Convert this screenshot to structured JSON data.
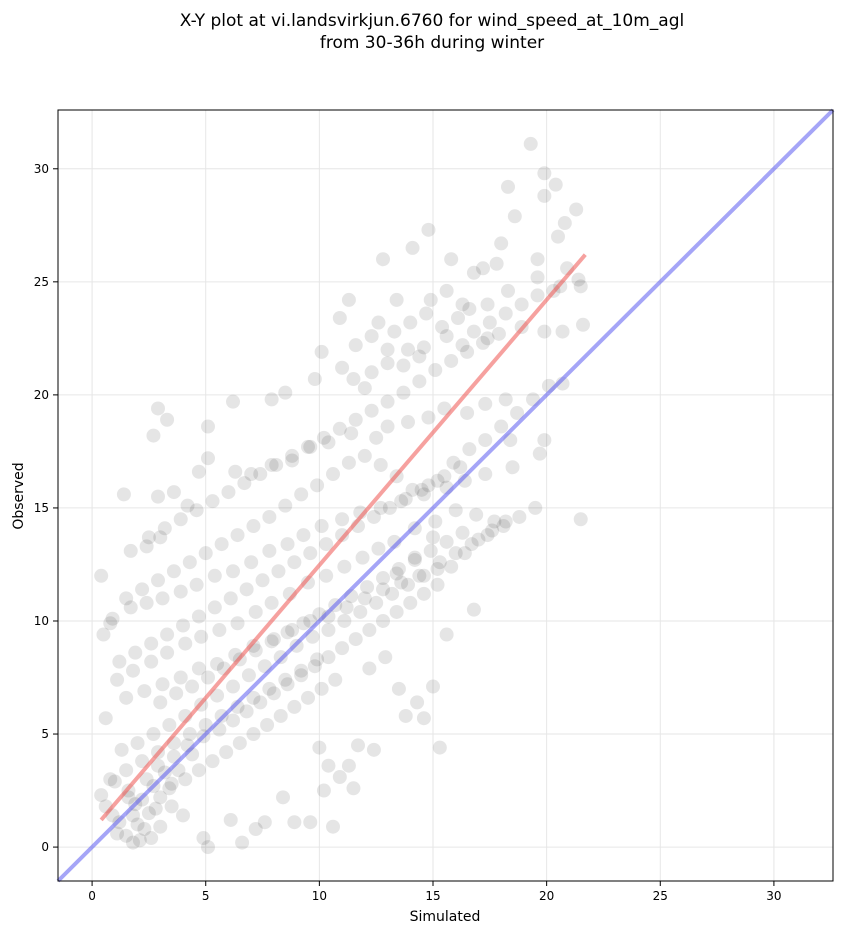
{
  "chart_data": {
    "type": "scatter",
    "title_lines": [
      "X-Y plot at vi.landsvirkjun.6760 for wind_speed_at_10m_agl",
      "from 30-36h during winter"
    ],
    "xlabel": "Simulated",
    "ylabel": "Observed",
    "xlim": [
      -1.5,
      32.6
    ],
    "ylim": [
      -1.5,
      32.6
    ],
    "xticks": [
      0,
      5,
      10,
      15,
      20,
      25,
      30
    ],
    "yticks": [
      0,
      5,
      10,
      15,
      20,
      25,
      30
    ],
    "grid": true,
    "colors": {
      "points": "#000000",
      "regression_line": "#ef5350",
      "identity_line": "#5b5bf0"
    },
    "identity_line": {
      "x": [
        -1.5,
        32.6
      ],
      "y": [
        -1.5,
        32.6
      ]
    },
    "regression_line": {
      "x": [
        0.4,
        21.7
      ],
      "y": [
        1.2,
        26.2
      ]
    },
    "points": [
      [
        19.3,
        31.1
      ],
      [
        19.9,
        29.8
      ],
      [
        20.4,
        29.3
      ],
      [
        19.9,
        28.8
      ],
      [
        18.3,
        29.2
      ],
      [
        21.3,
        28.2
      ],
      [
        20.8,
        27.6
      ],
      [
        18.6,
        27.9
      ],
      [
        20.5,
        27.0
      ],
      [
        18.0,
        26.7
      ],
      [
        15.8,
        26.0
      ],
      [
        17.8,
        25.8
      ],
      [
        17.2,
        25.6
      ],
      [
        16.8,
        25.4
      ],
      [
        19.6,
        25.2
      ],
      [
        20.6,
        24.8
      ],
      [
        21.5,
        24.8
      ],
      [
        18.3,
        24.6
      ],
      [
        17.4,
        24.0
      ],
      [
        16.6,
        23.8
      ],
      [
        14.8,
        27.3
      ],
      [
        14.1,
        26.5
      ],
      [
        12.8,
        26.0
      ],
      [
        11.3,
        24.2
      ],
      [
        13.4,
        24.2
      ],
      [
        12.6,
        23.2
      ],
      [
        10.9,
        23.4
      ],
      [
        21.6,
        23.1
      ],
      [
        20.7,
        22.8
      ],
      [
        19.9,
        22.8
      ],
      [
        18.9,
        23.0
      ],
      [
        17.4,
        22.5
      ],
      [
        16.3,
        22.2
      ],
      [
        15.6,
        22.6
      ],
      [
        14.6,
        22.1
      ],
      [
        13.9,
        22.0
      ],
      [
        13.0,
        21.4
      ],
      [
        12.3,
        21.0
      ],
      [
        11.5,
        20.7
      ],
      [
        10.1,
        21.9
      ],
      [
        11.0,
        21.2
      ],
      [
        12.0,
        20.3
      ],
      [
        9.8,
        20.7
      ],
      [
        8.5,
        20.1
      ],
      [
        7.9,
        19.8
      ],
      [
        6.2,
        19.7
      ],
      [
        2.9,
        19.4
      ],
      [
        18.2,
        19.8
      ],
      [
        17.3,
        19.6
      ],
      [
        16.5,
        19.2
      ],
      [
        15.5,
        19.4
      ],
      [
        14.8,
        19.0
      ],
      [
        13.9,
        18.8
      ],
      [
        13.0,
        18.6
      ],
      [
        12.5,
        18.1
      ],
      [
        11.4,
        18.3
      ],
      [
        10.4,
        17.9
      ],
      [
        9.6,
        17.7
      ],
      [
        8.8,
        17.1
      ],
      [
        7.9,
        16.9
      ],
      [
        7.0,
        16.5
      ],
      [
        6.3,
        16.6
      ],
      [
        5.1,
        17.2
      ],
      [
        5.1,
        18.6
      ],
      [
        2.7,
        18.2
      ],
      [
        3.3,
        18.9
      ],
      [
        4.7,
        16.6
      ],
      [
        19.9,
        18.0
      ],
      [
        19.7,
        17.4
      ],
      [
        18.5,
        16.8
      ],
      [
        17.3,
        16.5
      ],
      [
        16.4,
        16.2
      ],
      [
        15.6,
        15.9
      ],
      [
        14.6,
        15.6
      ],
      [
        13.6,
        15.3
      ],
      [
        12.7,
        15.0
      ],
      [
        11.8,
        14.8
      ],
      [
        11.0,
        14.5
      ],
      [
        10.1,
        14.2
      ],
      [
        9.3,
        13.8
      ],
      [
        8.6,
        13.4
      ],
      [
        7.8,
        13.1
      ],
      [
        7.0,
        12.6
      ],
      [
        6.2,
        12.2
      ],
      [
        5.4,
        12.0
      ],
      [
        4.6,
        11.6
      ],
      [
        3.9,
        11.3
      ],
      [
        3.1,
        11.0
      ],
      [
        2.4,
        10.8
      ],
      [
        1.7,
        10.6
      ],
      [
        0.9,
        10.1
      ],
      [
        0.4,
        12.0
      ],
      [
        0.5,
        9.4
      ],
      [
        1.4,
        15.6
      ],
      [
        2.9,
        15.5
      ],
      [
        3.6,
        15.7
      ],
      [
        4.2,
        15.1
      ],
      [
        3.0,
        13.7
      ],
      [
        2.4,
        13.3
      ],
      [
        1.7,
        13.1
      ],
      [
        21.5,
        14.5
      ],
      [
        18.4,
        18.0
      ],
      [
        17.7,
        14.4
      ],
      [
        16.9,
        14.7
      ],
      [
        16.0,
        14.9
      ],
      [
        15.1,
        14.4
      ],
      [
        14.2,
        14.1
      ],
      [
        13.3,
        13.5
      ],
      [
        12.6,
        13.2
      ],
      [
        11.9,
        12.8
      ],
      [
        11.1,
        12.4
      ],
      [
        10.3,
        12.0
      ],
      [
        9.5,
        11.7
      ],
      [
        8.7,
        11.2
      ],
      [
        7.9,
        10.8
      ],
      [
        7.2,
        10.4
      ],
      [
        6.4,
        9.9
      ],
      [
        5.6,
        9.6
      ],
      [
        4.8,
        9.3
      ],
      [
        4.1,
        9.0
      ],
      [
        3.3,
        8.6
      ],
      [
        2.6,
        8.2
      ],
      [
        1.8,
        7.8
      ],
      [
        1.1,
        7.4
      ],
      [
        0.6,
        5.7
      ],
      [
        1.5,
        6.6
      ],
      [
        2.3,
        6.9
      ],
      [
        3.1,
        7.2
      ],
      [
        3.9,
        7.5
      ],
      [
        4.7,
        7.9
      ],
      [
        5.5,
        8.1
      ],
      [
        6.3,
        8.5
      ],
      [
        7.1,
        8.9
      ],
      [
        8.0,
        9.2
      ],
      [
        8.8,
        9.6
      ],
      [
        9.6,
        10.0
      ],
      [
        10.4,
        10.2
      ],
      [
        11.2,
        10.6
      ],
      [
        12.0,
        11.0
      ],
      [
        12.8,
        11.4
      ],
      [
        13.6,
        11.7
      ],
      [
        14.4,
        12.0
      ],
      [
        15.2,
        12.3
      ],
      [
        15.0,
        13.7
      ],
      [
        14.2,
        12.8
      ],
      [
        13.4,
        12.1
      ],
      [
        16.8,
        10.5
      ],
      [
        15.6,
        9.4
      ],
      [
        15.0,
        7.1
      ],
      [
        14.6,
        5.7
      ],
      [
        15.3,
        4.4
      ],
      [
        14.3,
        6.4
      ],
      [
        13.8,
        5.8
      ],
      [
        13.5,
        7.0
      ],
      [
        12.9,
        8.4
      ],
      [
        12.2,
        7.9
      ],
      [
        11.7,
        4.5
      ],
      [
        12.4,
        4.3
      ],
      [
        11.3,
        3.6
      ],
      [
        10.4,
        3.6
      ],
      [
        10.0,
        4.4
      ],
      [
        10.9,
        3.1
      ],
      [
        11.5,
        2.6
      ],
      [
        10.2,
        2.5
      ],
      [
        10.6,
        0.9
      ],
      [
        9.6,
        1.1
      ],
      [
        8.9,
        1.1
      ],
      [
        8.4,
        2.2
      ],
      [
        7.6,
        1.1
      ],
      [
        7.2,
        0.8
      ],
      [
        6.1,
        1.2
      ],
      [
        6.6,
        0.2
      ],
      [
        5.1,
        0.0
      ],
      [
        4.9,
        0.4
      ],
      [
        4.0,
        1.4
      ],
      [
        3.5,
        1.8
      ],
      [
        3.0,
        0.9
      ],
      [
        2.6,
        0.4
      ],
      [
        2.1,
        0.3
      ],
      [
        1.8,
        0.2
      ],
      [
        1.5,
        0.5
      ],
      [
        1.2,
        1.1
      ],
      [
        0.9,
        1.4
      ],
      [
        0.6,
        1.8
      ],
      [
        0.4,
        2.3
      ],
      [
        1.0,
        2.9
      ],
      [
        1.6,
        2.5
      ],
      [
        2.2,
        2.1
      ],
      [
        2.8,
        1.7
      ],
      [
        3.4,
        2.6
      ],
      [
        4.1,
        3.0
      ],
      [
        4.7,
        3.4
      ],
      [
        5.3,
        3.8
      ],
      [
        5.9,
        4.2
      ],
      [
        6.5,
        4.6
      ],
      [
        7.1,
        5.0
      ],
      [
        7.7,
        5.4
      ],
      [
        8.3,
        5.8
      ],
      [
        8.9,
        6.2
      ],
      [
        9.5,
        6.6
      ],
      [
        10.1,
        7.0
      ],
      [
        10.7,
        7.4
      ],
      [
        9.9,
        8.3
      ],
      [
        9.2,
        7.8
      ],
      [
        8.5,
        7.4
      ],
      [
        7.8,
        7.0
      ],
      [
        7.1,
        6.6
      ],
      [
        6.4,
        6.2
      ],
      [
        5.7,
        5.8
      ],
      [
        5.0,
        5.4
      ],
      [
        4.3,
        5.0
      ],
      [
        3.6,
        4.6
      ],
      [
        2.9,
        4.2
      ],
      [
        2.2,
        3.8
      ],
      [
        1.5,
        3.4
      ],
      [
        0.8,
        3.0
      ],
      [
        1.3,
        4.3
      ],
      [
        2.0,
        4.6
      ],
      [
        2.7,
        5.0
      ],
      [
        3.4,
        5.4
      ],
      [
        4.1,
        5.8
      ],
      [
        4.8,
        6.3
      ],
      [
        5.5,
        6.7
      ],
      [
        6.2,
        7.1
      ],
      [
        6.9,
        7.6
      ],
      [
        7.6,
        8.0
      ],
      [
        8.3,
        8.4
      ],
      [
        9.0,
        8.9
      ],
      [
        9.7,
        9.3
      ],
      [
        10.4,
        9.6
      ],
      [
        11.1,
        10.0
      ],
      [
        11.8,
        10.4
      ],
      [
        12.5,
        10.8
      ],
      [
        13.2,
        11.2
      ],
      [
        13.9,
        11.6
      ],
      [
        14.6,
        12.0
      ],
      [
        15.3,
        12.6
      ],
      [
        16.0,
        13.0
      ],
      [
        16.7,
        13.4
      ],
      [
        17.4,
        13.8
      ],
      [
        18.1,
        14.2
      ],
      [
        18.8,
        14.6
      ],
      [
        19.5,
        15.0
      ],
      [
        16.2,
        16.8
      ],
      [
        15.5,
        16.4
      ],
      [
        14.8,
        16.0
      ],
      [
        14.1,
        15.8
      ],
      [
        13.4,
        16.4
      ],
      [
        12.7,
        16.9
      ],
      [
        12.0,
        17.3
      ],
      [
        11.3,
        17.0
      ],
      [
        10.6,
        16.5
      ],
      [
        9.9,
        16.0
      ],
      [
        9.2,
        15.6
      ],
      [
        8.5,
        15.1
      ],
      [
        7.8,
        14.6
      ],
      [
        7.1,
        14.2
      ],
      [
        6.4,
        13.8
      ],
      [
        5.7,
        13.4
      ],
      [
        5.0,
        13.0
      ],
      [
        4.3,
        12.6
      ],
      [
        3.6,
        12.2
      ],
      [
        2.9,
        11.8
      ],
      [
        2.2,
        11.4
      ],
      [
        1.5,
        11.0
      ],
      [
        0.8,
        9.9
      ],
      [
        1.2,
        8.2
      ],
      [
        1.9,
        8.6
      ],
      [
        2.6,
        9.0
      ],
      [
        3.3,
        9.4
      ],
      [
        4.0,
        9.8
      ],
      [
        4.7,
        10.2
      ],
      [
        5.4,
        10.6
      ],
      [
        6.1,
        11.0
      ],
      [
        6.8,
        11.4
      ],
      [
        7.5,
        11.8
      ],
      [
        8.2,
        12.2
      ],
      [
        8.9,
        12.6
      ],
      [
        9.6,
        13.0
      ],
      [
        10.3,
        13.4
      ],
      [
        11.0,
        13.8
      ],
      [
        11.7,
        14.2
      ],
      [
        12.4,
        14.6
      ],
      [
        13.1,
        15.0
      ],
      [
        13.8,
        15.4
      ],
      [
        14.5,
        15.8
      ],
      [
        15.2,
        16.2
      ],
      [
        15.9,
        17.0
      ],
      [
        16.6,
        17.6
      ],
      [
        17.3,
        18.0
      ],
      [
        18.0,
        18.6
      ],
      [
        18.7,
        19.2
      ],
      [
        19.4,
        19.8
      ],
      [
        20.1,
        20.4
      ],
      [
        20.7,
        20.5
      ],
      [
        14.4,
        20.6
      ],
      [
        13.7,
        20.1
      ],
      [
        13.0,
        19.7
      ],
      [
        12.3,
        19.3
      ],
      [
        11.6,
        18.9
      ],
      [
        10.9,
        18.5
      ],
      [
        10.2,
        18.1
      ],
      [
        9.5,
        17.7
      ],
      [
        8.8,
        17.3
      ],
      [
        8.1,
        16.9
      ],
      [
        7.4,
        16.5
      ],
      [
        6.7,
        16.1
      ],
      [
        6.0,
        15.7
      ],
      [
        5.3,
        15.3
      ],
      [
        4.6,
        14.9
      ],
      [
        3.9,
        14.5
      ],
      [
        3.2,
        14.1
      ],
      [
        2.5,
        13.7
      ],
      [
        17.9,
        22.7
      ],
      [
        17.2,
        22.3
      ],
      [
        16.5,
        21.9
      ],
      [
        15.8,
        21.5
      ],
      [
        15.1,
        21.1
      ],
      [
        14.4,
        21.7
      ],
      [
        13.7,
        21.3
      ],
      [
        13.0,
        22.0
      ],
      [
        12.3,
        22.6
      ],
      [
        11.6,
        22.2
      ],
      [
        19.6,
        24.4
      ],
      [
        18.9,
        24.0
      ],
      [
        18.2,
        23.6
      ],
      [
        17.5,
        23.2
      ],
      [
        16.8,
        22.8
      ],
      [
        16.1,
        23.4
      ],
      [
        15.4,
        23.0
      ],
      [
        14.7,
        23.6
      ],
      [
        14.0,
        23.2
      ],
      [
        13.3,
        22.8
      ],
      [
        20.3,
        24.6
      ],
      [
        19.6,
        26.0
      ],
      [
        20.9,
        25.6
      ],
      [
        21.4,
        25.1
      ],
      [
        16.3,
        24.0
      ],
      [
        15.6,
        24.6
      ],
      [
        14.9,
        24.2
      ],
      [
        2.0,
        1.0
      ],
      [
        2.5,
        1.5
      ],
      [
        3.0,
        2.2
      ],
      [
        3.5,
        2.8
      ],
      [
        2.3,
        0.8
      ],
      [
        1.9,
        1.9
      ],
      [
        2.7,
        2.7
      ],
      [
        3.2,
        3.3
      ],
      [
        1.6,
        2.2
      ],
      [
        2.4,
        3.0
      ],
      [
        3.8,
        3.4
      ],
      [
        4.4,
        4.1
      ],
      [
        1.1,
        0.6
      ],
      [
        1.8,
        1.4
      ],
      [
        2.9,
        3.6
      ],
      [
        3.6,
        4.0
      ],
      [
        4.2,
        4.5
      ],
      [
        4.9,
        4.9
      ],
      [
        5.6,
        5.2
      ],
      [
        6.2,
        5.6
      ],
      [
        6.8,
        6.0
      ],
      [
        7.4,
        6.4
      ],
      [
        8.0,
        6.8
      ],
      [
        8.6,
        7.2
      ],
      [
        9.2,
        7.6
      ],
      [
        9.8,
        8.0
      ],
      [
        10.4,
        8.4
      ],
      [
        11.0,
        8.8
      ],
      [
        11.6,
        9.2
      ],
      [
        12.2,
        9.6
      ],
      [
        12.8,
        10.0
      ],
      [
        13.4,
        10.4
      ],
      [
        14.0,
        10.8
      ],
      [
        14.6,
        11.2
      ],
      [
        15.2,
        11.6
      ],
      [
        15.8,
        12.4
      ],
      [
        16.4,
        13.0
      ],
      [
        17.0,
        13.6
      ],
      [
        17.6,
        14.0
      ],
      [
        18.2,
        14.4
      ],
      [
        3.0,
        6.4
      ],
      [
        3.7,
        6.8
      ],
      [
        4.4,
        7.1
      ],
      [
        5.1,
        7.5
      ],
      [
        5.8,
        7.9
      ],
      [
        6.5,
        8.3
      ],
      [
        7.2,
        8.7
      ],
      [
        7.9,
        9.1
      ],
      [
        8.6,
        9.5
      ],
      [
        9.3,
        9.9
      ],
      [
        10.0,
        10.3
      ],
      [
        10.7,
        10.7
      ],
      [
        11.4,
        11.1
      ],
      [
        12.1,
        11.5
      ],
      [
        12.8,
        11.9
      ],
      [
        13.5,
        12.3
      ],
      [
        14.2,
        12.7
      ],
      [
        14.9,
        13.1
      ],
      [
        15.6,
        13.5
      ],
      [
        16.3,
        13.9
      ]
    ]
  }
}
